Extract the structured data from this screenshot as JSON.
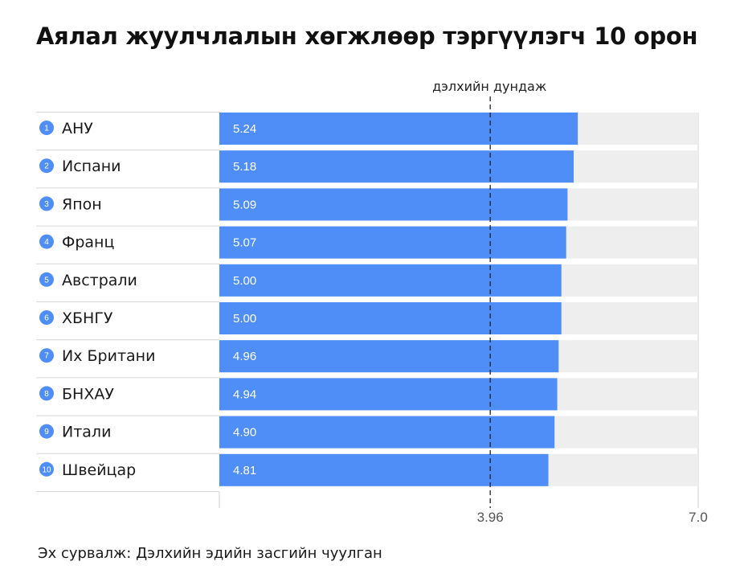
{
  "title": "Аялал жуулчлалын хөгжлөөр тэргүүлэгч 10 орон",
  "source": "Эх сурвалж: Дэлхийн эдийн засгийн чуулган",
  "colors": {
    "bar": "#4f8ef7",
    "track": "#eeeeee",
    "rank_badge": "#4f8ef7",
    "row_line": "#d6d6d6",
    "avg_line": "#222222"
  },
  "chart_data": {
    "type": "bar",
    "orientation": "horizontal",
    "title": "Аялал жуулчлалын хөгжлөөр тэргүүлэгч 10 орон",
    "xlim": [
      0,
      7.0
    ],
    "ticks": [
      {
        "value": 3.96,
        "label": "3.96"
      },
      {
        "value": 7.0,
        "label": "7.0"
      }
    ],
    "reference_line": {
      "value": 3.96,
      "label": "дэлхийн дундаж"
    },
    "rows": [
      {
        "rank": "1",
        "country": "АНУ",
        "value": 5.24,
        "label": "5.24"
      },
      {
        "rank": "2",
        "country": "Испани",
        "value": 5.18,
        "label": "5.18"
      },
      {
        "rank": "3",
        "country": "Япон",
        "value": 5.09,
        "label": "5.09"
      },
      {
        "rank": "4",
        "country": "Франц",
        "value": 5.07,
        "label": "5.07"
      },
      {
        "rank": "5",
        "country": "Австрали",
        "value": 5.0,
        "label": "5.00"
      },
      {
        "rank": "6",
        "country": "ХБНГУ",
        "value": 5.0,
        "label": "5.00"
      },
      {
        "rank": "7",
        "country": "Их Британи",
        "value": 4.96,
        "label": "4.96"
      },
      {
        "rank": "8",
        "country": "БНХАУ",
        "value": 4.94,
        "label": "4.94"
      },
      {
        "rank": "9",
        "country": "Итали",
        "value": 4.9,
        "label": "4.90"
      },
      {
        "rank": "10",
        "country": "Швейцар",
        "value": 4.81,
        "label": "4.81"
      }
    ]
  }
}
